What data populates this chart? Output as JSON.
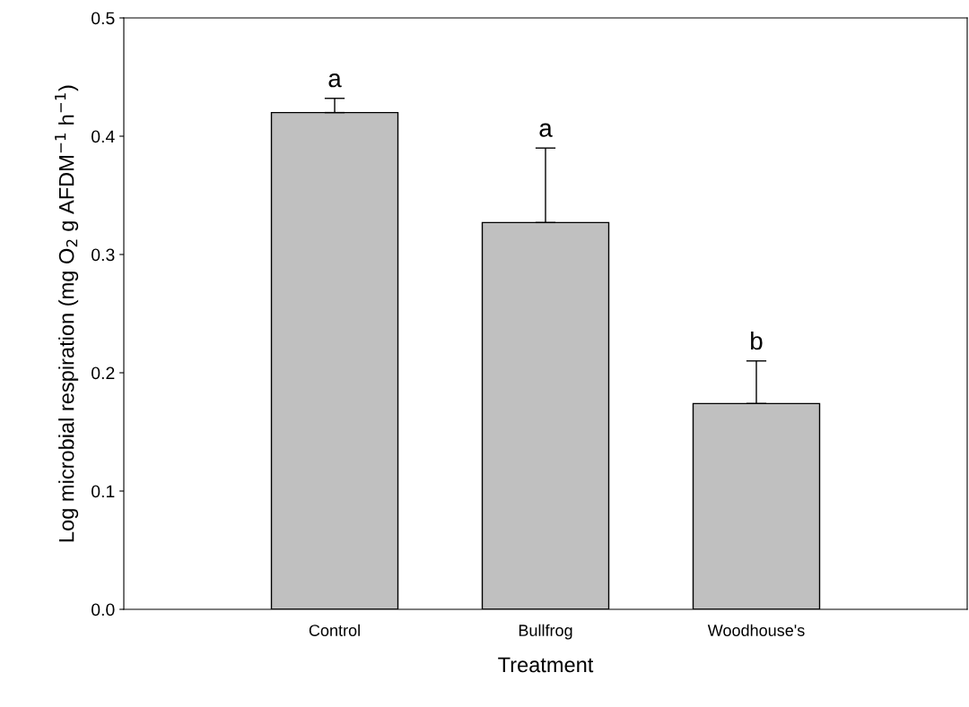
{
  "chart_data": {
    "type": "bar",
    "xlabel": "Treatment",
    "ylabel": "Log microbial respiration (mg O$_{2}$ g AFDM$^{−1}$ h$^{−1}$)",
    "categories": [
      "Control",
      "Bullfrog",
      "Woodhouse's"
    ],
    "values": [
      0.42,
      0.327,
      0.174
    ],
    "errors": [
      [
        0.42,
        0.432
      ],
      [
        0.327,
        0.39
      ],
      [
        0.174,
        0.21
      ]
    ],
    "color": "#c0c0c0",
    "ylim": [
      0,
      0.5
    ],
    "yticks": [
      {
        "value": 0,
        "label": "0.0"
      },
      0.1,
      0.2,
      0.3,
      0.4,
      0.5
    ],
    "annotations": [
      "a",
      "a",
      "b"
    ],
    "grid": false,
    "legend": false
  }
}
